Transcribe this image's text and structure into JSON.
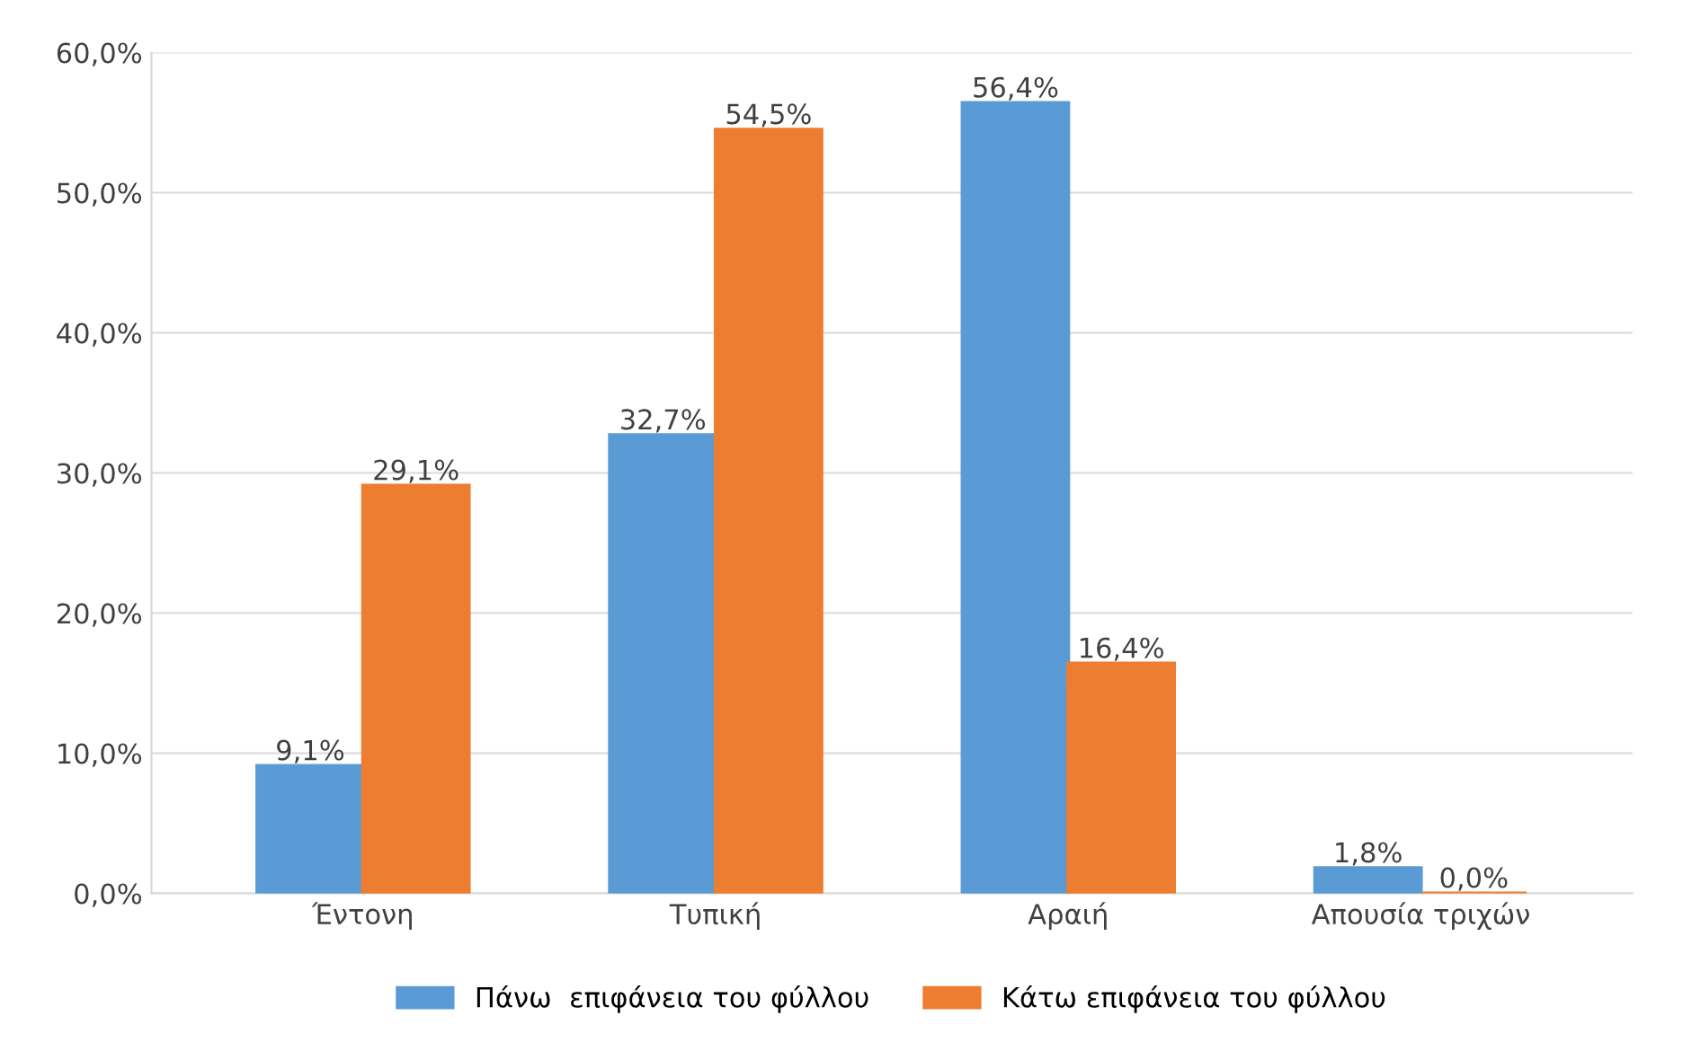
{
  "chart_data": {
    "type": "bar",
    "categories": [
      "Έντονη",
      "Τυπική",
      "Αραιή",
      "Απουσία τριχών"
    ],
    "series": [
      {
        "name": "Πάνω  επιφάνεια του φύλλου",
        "color": "#5b9bd5",
        "values": [
          9.1,
          32.7,
          56.4,
          1.8
        ],
        "value_labels": [
          "9,1%",
          "32,7%",
          "56,4%",
          "1,8%"
        ]
      },
      {
        "name": "Κάτω επιφάνεια του φύλλου",
        "color": "#ed7d31",
        "values": [
          29.1,
          54.5,
          16.4,
          0.0
        ],
        "value_labels": [
          "29,1%",
          "54,5%",
          "16,4%",
          "0,0%"
        ]
      }
    ],
    "ylim": [
      0,
      60
    ],
    "yticks": [
      {
        "value": 0,
        "label": "0,0%"
      },
      {
        "value": 10,
        "label": "10,0%"
      },
      {
        "value": 20,
        "label": "20,0%"
      },
      {
        "value": 30,
        "label": "30,0%"
      },
      {
        "value": 40,
        "label": "40,0%"
      },
      {
        "value": 50,
        "label": "50,0%"
      },
      {
        "value": 60,
        "label": "60,0%"
      }
    ],
    "grid": "y",
    "legend": "bottom"
  }
}
